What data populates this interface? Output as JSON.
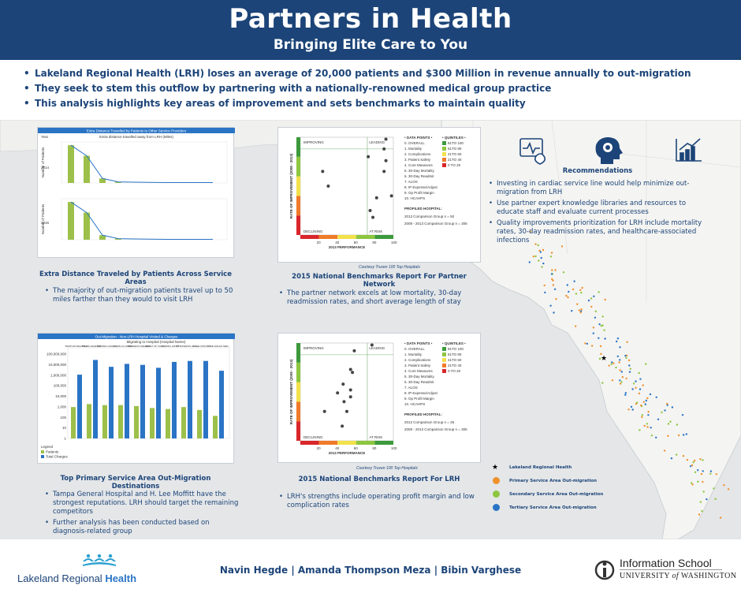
{
  "header": {
    "title": "Partners in Health",
    "subtitle": "Bringing Elite Care to You"
  },
  "intro_bullets": [
    "Lakeland Regional Health (LRH) loses an average of 20,000 patients and $300 Million in revenue annually to out-migration",
    "They seek to stem this outflow by partnering with a nationally-renowned medical group practice",
    "This analysis highlights key areas of improvement and sets benchmarks to maintain quality"
  ],
  "distance_panel": {
    "title": "Extra Distance Travelled by Patients to Other Service Providers",
    "subtitle": "Extra distance travelled away from LRH (Miles)",
    "year_header": "Year",
    "rows": [
      "2014",
      "2016"
    ],
    "y_label": "Number of Patients",
    "caption": "Extra Distance Traveled by Patients Across Service Areas",
    "note": "The majority of out-migration patients travel up to 50 miles farther than they would to visit LRH"
  },
  "partner_panel": {
    "y_label": "RATE OF IMPROVEMENT (2008 - 2013)",
    "x_label": "2013 PERFORMANCE",
    "quadrants": [
      "IMPROVING",
      "LEADING",
      "DECLINING",
      "AT RISK"
    ],
    "x_ticks": [
      "20",
      "40",
      "60",
      "80",
      "100"
    ],
    "data_points_title": "DATA POINTS",
    "data_points": [
      "0. OVERALL",
      "1. Mortality",
      "2. Complications",
      "3. Patient Safety",
      "4. Core Measures",
      "5. 30-Day Mortality",
      "6. 30-Day Readmit",
      "7. ALOS",
      "8. IP Expense/Adjust",
      "9. Op Profit Margin",
      "10. HCAHPS"
    ],
    "quintiles_title": "QUINTILES",
    "quintiles": [
      "81TO 100",
      "61TO 80",
      "41TO 60",
      "21TO 40",
      "0 TO 20"
    ],
    "profiled_title": "PROFILED HOSPITAL:",
    "profiled_lines": [
      "2013 Comparison Group n = 50",
      "2008 - 2013 Comparison Group n = 306"
    ],
    "courtesy": "Courtesy Truven 100 Top Hospitals",
    "caption": "2015 National Benchmarks Report For Partner Network",
    "note": "The partner network excels at low mortality, 30-day readmission rates, and short average length of stay"
  },
  "migration_panel": {
    "title": "Out-Migration - Non-LRH Hospital Visited & Charges",
    "subtitle": "Migrating to Hospital (Hospital Name)",
    "hospitals": [
      "BARTOW REGIONAL MEDICAL CENTER",
      "TAMPA GENERAL HOSPITAL",
      "WINTER HAVEN HOSPITAL",
      "SOUTH FLORIDA BAPTIST HOSPITAL",
      "BRANDON REGIONAL HOSPITAL",
      "HEART OF FLORIDA REGIONAL MEDICAL CENTER",
      "FLORIDA HOSPITAL TAMPA",
      "ST JOSEPHS HOSPITAL",
      "H LEE MOFFITT CANCER CENTER & RESEARCH",
      "LAKE WALES MEDICAL CENTER"
    ],
    "y_ticks": [
      "100,000,000",
      "10,000,000",
      "1,000,000",
      "100,000",
      "10,000",
      "1,000",
      "100",
      "10",
      "1"
    ],
    "legend_title": "Legend",
    "legend": [
      "Patients",
      "Total Charges"
    ],
    "caption": "Top Primary Service Area Out-Migration Destinations",
    "notes": [
      "Tampa General Hospital and H. Lee Moffitt have the strongest reputations. LRH should target the remaining competitors",
      "Further analysis has been conducted based on diagnosis-related group"
    ]
  },
  "lrh_panel": {
    "y_label": "RATE OF IMPROVEMENT (2008 - 2013)",
    "x_label": "2013 PERFORMANCE",
    "quadrants": [
      "IMPROVING",
      "LEADING",
      "DECLINING",
      "AT RISK"
    ],
    "x_ticks": [
      "20",
      "40",
      "60",
      "80",
      "100"
    ],
    "data_points_title": "DATA POINTS",
    "data_points": [
      "0. OVERALL",
      "1. Mortality",
      "2. Complications",
      "3. Patient Safety",
      "4. Core Measures",
      "5. 30-Day Mortality",
      "6. 30-Day Readmit",
      "7. ALOS",
      "8. IP Expense/Adjust",
      "9. Op Profit Margin",
      "10. HCAHPS"
    ],
    "quintiles_title": "QUINTILES",
    "quintiles": [
      "81TO 100",
      "61TO 80",
      "41TO 60",
      "21TO 40",
      "0 TO 20"
    ],
    "profiled_title": "PROFILED HOSPITAL:",
    "profiled_lines": [
      "2013 Comparison Group n = 26",
      "2008 - 2013 Comparison Group n = 306"
    ],
    "courtesy": "Courtesy Truven 100 Top Hospitals",
    "caption": "2015 National Benchmarks Report For LRH",
    "note": "LRH's strengths include operating profit margin and low complication rates"
  },
  "recommendations": {
    "title": "Recommendations",
    "icons": [
      "heart-monitor-icon",
      "brain-gear-icon",
      "growth-chart-icon"
    ],
    "items": [
      "Investing in cardiac service line would help minimize out-migration from LRH",
      "Use partner expert knowledge libraries and resources to educate staff and evaluate current processes",
      "Quality improvements prioritization for LRH include mortality rates, 30-day readmission rates, and healthcare-associated infections"
    ]
  },
  "map_legend": [
    {
      "label": "Lakeland Regional Health",
      "color": "#000000",
      "icon": "star-icon"
    },
    {
      "label": "Primary Service Area Out-migration",
      "color": "#f0912c"
    },
    {
      "label": "Secondary Service Area Out-migration",
      "color": "#8dc63f"
    },
    {
      "label": "Tertiary Service Area Out-migration",
      "color": "#2a74c5"
    }
  ],
  "footer": {
    "logo_left_a": "Lakeland Regional ",
    "logo_left_b": "Health",
    "authors": "Navin Hegde | Amanda Thompson Meza | Bibin Varghese",
    "logo_right_top": "Information School",
    "logo_right_bottom_a": "UNIVERSITY ",
    "logo_right_bottom_of": "of",
    "logo_right_bottom_b": " WASHINGTON"
  },
  "colors": {
    "navy": "#1c4478",
    "green_bar": "#9cc04a",
    "blue_bar": "#2a74c5"
  }
}
